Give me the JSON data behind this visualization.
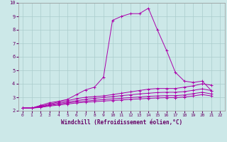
{
  "background_color": "#cce8e8",
  "grid_color": "#aacccc",
  "line_color": "#aa00aa",
  "xlabel": "Windchill (Refroidissement éolien,°C)",
  "xlim": [
    -0.5,
    22.5
  ],
  "ylim": [
    2,
    10
  ],
  "xticks": [
    0,
    1,
    2,
    3,
    4,
    5,
    6,
    7,
    8,
    9,
    10,
    11,
    12,
    13,
    14,
    15,
    16,
    17,
    18,
    19,
    20,
    21,
    22
  ],
  "yticks": [
    2,
    3,
    4,
    5,
    6,
    7,
    8,
    9,
    10
  ],
  "series": [
    [
      2.2,
      2.2,
      2.4,
      2.6,
      2.7,
      2.85,
      3.2,
      3.55,
      3.75,
      4.5,
      8.7,
      9.0,
      9.2,
      9.2,
      9.6,
      8.0,
      6.5,
      4.85,
      4.2,
      4.1,
      4.2,
      3.5
    ],
    [
      2.2,
      2.2,
      2.35,
      2.5,
      2.65,
      2.75,
      2.9,
      3.0,
      3.05,
      3.1,
      3.2,
      3.3,
      3.4,
      3.5,
      3.6,
      3.65,
      3.65,
      3.65,
      3.75,
      3.85,
      4.0,
      3.9
    ],
    [
      2.2,
      2.2,
      2.3,
      2.45,
      2.55,
      2.65,
      2.75,
      2.85,
      2.92,
      2.98,
      3.05,
      3.12,
      3.18,
      3.25,
      3.3,
      3.35,
      3.37,
      3.37,
      3.42,
      3.52,
      3.62,
      3.5
    ],
    [
      2.2,
      2.2,
      2.28,
      2.4,
      2.5,
      2.58,
      2.66,
      2.72,
      2.78,
      2.83,
      2.88,
      2.93,
      2.98,
      3.02,
      3.07,
      3.1,
      3.12,
      3.12,
      3.17,
      3.27,
      3.37,
      3.25
    ],
    [
      2.2,
      2.2,
      2.25,
      2.35,
      2.42,
      2.5,
      2.58,
      2.63,
      2.68,
      2.72,
      2.76,
      2.8,
      2.85,
      2.88,
      2.92,
      2.95,
      2.97,
      2.97,
      3.02,
      3.1,
      3.2,
      3.1
    ]
  ]
}
